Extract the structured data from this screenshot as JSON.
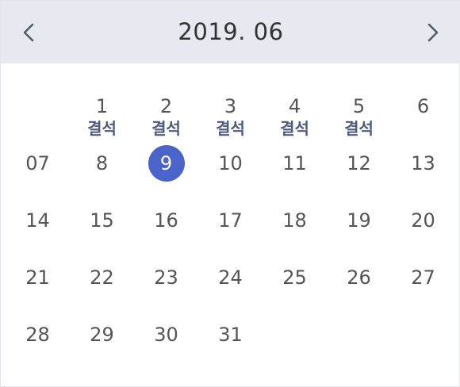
{
  "header": {
    "title": "2019. 06",
    "prev_icon": "chevron-left-icon",
    "next_icon": "chevron-right-icon"
  },
  "colors": {
    "header_bg": "#e6e9f0",
    "selected_bg": "#4c63c9",
    "note_text": "#4f5b7d",
    "day_text": "#555555"
  },
  "selected_day": "9",
  "weeks": [
    [
      {
        "day": "",
        "note": ""
      },
      {
        "day": "1",
        "note": "결석"
      },
      {
        "day": "2",
        "note": "결석"
      },
      {
        "day": "3",
        "note": "결석"
      },
      {
        "day": "4",
        "note": "결석"
      },
      {
        "day": "5",
        "note": "결석"
      },
      {
        "day": "6",
        "note": ""
      }
    ],
    [
      {
        "day": "07",
        "note": ""
      },
      {
        "day": "8",
        "note": ""
      },
      {
        "day": "9",
        "note": ""
      },
      {
        "day": "10",
        "note": ""
      },
      {
        "day": "11",
        "note": ""
      },
      {
        "day": "12",
        "note": ""
      },
      {
        "day": "13",
        "note": ""
      }
    ],
    [
      {
        "day": "14",
        "note": ""
      },
      {
        "day": "15",
        "note": ""
      },
      {
        "day": "16",
        "note": ""
      },
      {
        "day": "17",
        "note": ""
      },
      {
        "day": "18",
        "note": ""
      },
      {
        "day": "19",
        "note": ""
      },
      {
        "day": "20",
        "note": ""
      }
    ],
    [
      {
        "day": "21",
        "note": ""
      },
      {
        "day": "22",
        "note": ""
      },
      {
        "day": "23",
        "note": ""
      },
      {
        "day": "24",
        "note": ""
      },
      {
        "day": "25",
        "note": ""
      },
      {
        "day": "26",
        "note": ""
      },
      {
        "day": "27",
        "note": ""
      }
    ],
    [
      {
        "day": "28",
        "note": ""
      },
      {
        "day": "29",
        "note": ""
      },
      {
        "day": "30",
        "note": ""
      },
      {
        "day": "31",
        "note": ""
      },
      {
        "day": "",
        "note": ""
      },
      {
        "day": "",
        "note": ""
      },
      {
        "day": "",
        "note": ""
      }
    ]
  ]
}
